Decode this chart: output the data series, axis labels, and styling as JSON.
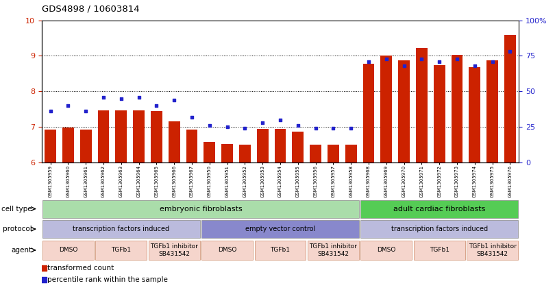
{
  "title": "GDS4898 / 10603814",
  "samples": [
    "GSM1305959",
    "GSM1305960",
    "GSM1305961",
    "GSM1305962",
    "GSM1305963",
    "GSM1305964",
    "GSM1305965",
    "GSM1305966",
    "GSM1305967",
    "GSM1305950",
    "GSM1305951",
    "GSM1305952",
    "GSM1305953",
    "GSM1305954",
    "GSM1305955",
    "GSM1305956",
    "GSM1305957",
    "GSM1305958",
    "GSM1305968",
    "GSM1305969",
    "GSM1305970",
    "GSM1305971",
    "GSM1305972",
    "GSM1305973",
    "GSM1305974",
    "GSM1305975",
    "GSM1305976"
  ],
  "red_values": [
    6.93,
    6.98,
    6.93,
    7.46,
    7.46,
    7.46,
    7.45,
    7.16,
    6.93,
    6.58,
    6.52,
    6.5,
    6.95,
    6.95,
    6.87,
    6.5,
    6.5,
    6.5,
    8.78,
    9.01,
    8.88,
    9.22,
    8.73,
    9.03,
    8.68,
    8.88,
    9.58
  ],
  "blue_values": [
    36,
    40,
    36,
    46,
    45,
    46,
    40,
    44,
    32,
    26,
    25,
    24,
    28,
    30,
    26,
    24,
    24,
    24,
    71,
    73,
    68,
    73,
    71,
    73,
    68,
    71,
    78
  ],
  "ylim_min": 6,
  "ylim_max": 10,
  "y2lim_min": 0,
  "y2lim_max": 100,
  "yticks": [
    6,
    7,
    8,
    9,
    10
  ],
  "y2ticks": [
    0,
    25,
    50,
    75,
    100
  ],
  "bar_color": "#cc2200",
  "dot_color": "#2222cc",
  "cell_type_groups": [
    {
      "label": "embryonic fibroblasts",
      "start": 0,
      "end": 17,
      "color": "#aaddaa"
    },
    {
      "label": "adult cardiac fibroblasts",
      "start": 18,
      "end": 26,
      "color": "#55cc55"
    }
  ],
  "protocol_groups": [
    {
      "label": "transcription factors induced",
      "start": 0,
      "end": 8,
      "color": "#bbbbdd"
    },
    {
      "label": "empty vector control",
      "start": 9,
      "end": 17,
      "color": "#8888cc"
    },
    {
      "label": "transcription factors induced",
      "start": 18,
      "end": 26,
      "color": "#bbbbdd"
    }
  ],
  "agent_groups": [
    {
      "label": "DMSO",
      "start": 0,
      "end": 2
    },
    {
      "label": "TGFb1",
      "start": 3,
      "end": 5
    },
    {
      "label": "TGFb1 inhibitor\nSB431542",
      "start": 6,
      "end": 8
    },
    {
      "label": "DMSO",
      "start": 9,
      "end": 11
    },
    {
      "label": "TGFb1",
      "start": 12,
      "end": 14
    },
    {
      "label": "TGFb1 inhibitor\nSB431542",
      "start": 15,
      "end": 17
    },
    {
      "label": "DMSO",
      "start": 18,
      "end": 20
    },
    {
      "label": "TGFb1",
      "start": 21,
      "end": 23
    },
    {
      "label": "TGFb1 inhibitor\nSB431542",
      "start": 24,
      "end": 26
    }
  ],
  "agent_color": "#f5d5cc",
  "agent_edge_color": "#cc8866",
  "legend_red": "transformed count",
  "legend_blue": "percentile rank within the sample",
  "row_label_celltype": "cell type",
  "row_label_protocol": "protocol",
  "row_label_agent": "agent"
}
